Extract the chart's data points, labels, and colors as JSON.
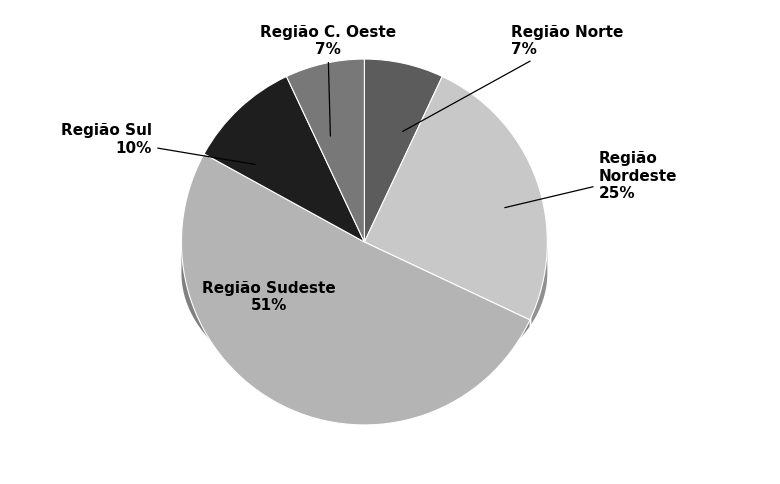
{
  "labels": [
    "Região Norte",
    "Região\nNordeste",
    "Região Sudeste",
    "Região Sul",
    "Região C. Oeste"
  ],
  "values": [
    7,
    25,
    51,
    10,
    7
  ],
  "colors_top": [
    "#5c5c5c",
    "#c8c8c8",
    "#b4b4b4",
    "#1e1e1e",
    "#787878"
  ],
  "colors_side": [
    "#3a3a3a",
    "#909090",
    "#808080",
    "#0a0a0a",
    "#505050"
  ],
  "startangle": 90,
  "label_fontsize": 11,
  "background_color": "#ffffff",
  "border_color": "#888888"
}
